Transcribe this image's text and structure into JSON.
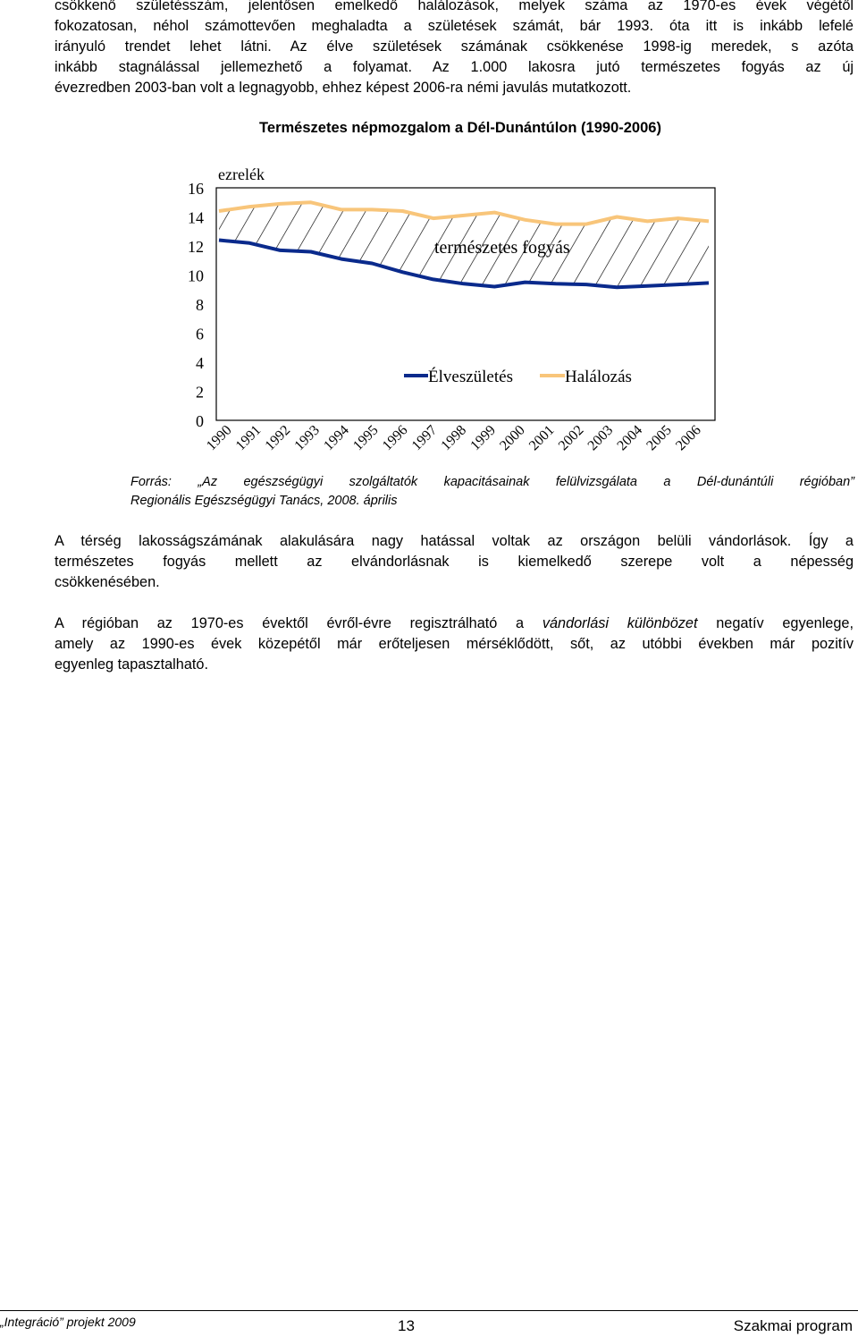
{
  "intro_paragraph": {
    "lines": [
      "csökkenő születésszám, jelentősen emelkedő halálozások, melyek száma az 1970-es évek végétől",
      "fokozatosan, néhol számottevően meghaladta a születések számát, bár 1993. óta itt is inkább lefelé",
      "irányuló trendet lehet látni. Az élve születések számának csökkenése 1998-ig meredek, s azóta",
      "inkább stagnálással jellemezhető a folyamat. Az 1.000 lakosra jutó természetes fogyás az új",
      "évezredben 2003-ban volt a legnagyobb, ehhez képest 2006-ra némi javulás mutatkozott."
    ]
  },
  "chart_title": "Természetes népmozgalom a Dél-Dunántúlon (1990-2006)",
  "chart_data": {
    "type": "line",
    "title": "Természetes népmozgalom a Dél-Dunántúlon (1990-2006)",
    "legend_title": "ezrelék",
    "x": [
      "1990",
      "1991",
      "1992",
      "1993",
      "1994",
      "1995",
      "1996",
      "1997",
      "1998",
      "1999",
      "2000",
      "2001",
      "2002",
      "2003",
      "2004",
      "2005",
      "2006"
    ],
    "ylim": [
      0,
      16
    ],
    "yticks": [
      0,
      2,
      4,
      6,
      8,
      10,
      12,
      14,
      16
    ],
    "series": [
      {
        "name": "Élveszületés",
        "color": "#0a2a8c",
        "values": [
          12.4,
          12.2,
          11.7,
          11.6,
          11.1,
          10.8,
          10.2,
          9.7,
          9.4,
          9.2,
          9.5,
          9.4,
          9.35,
          9.15,
          9.25,
          9.35,
          9.45
        ]
      },
      {
        "name": "Halálozás",
        "color": "#f8c57a",
        "values": [
          14.4,
          14.7,
          14.9,
          15.0,
          14.5,
          14.5,
          14.4,
          13.9,
          14.1,
          14.3,
          13.8,
          13.5,
          13.5,
          14.0,
          13.7,
          13.9,
          13.7
        ]
      }
    ],
    "annotations": [
      "természetes fogyás"
    ],
    "legend_position": "lower-right inside"
  },
  "source_note": {
    "lines": [
      "Forrás: „Az egészségügyi szolgáltatók kapacitásainak felülvizsgálata a Dél-dunántúli régióban”",
      "Regionális Egészségügyi Tanács, 2008. április"
    ]
  },
  "paragraph_2": {
    "lines": [
      "A térség lakosságszámának alakulására nagy hatással voltak az országon belüli vándorlások. Így a",
      "természetes fogyás mellett az elvándorlásnak is kiemelkedő szerepe volt a népesség",
      "csökkenésében."
    ]
  },
  "paragraph_3": {
    "line1_before": "A régióban az 1970-es évektől évről-évre regisztrálható a ",
    "line1_italic": "vándorlási különbözet",
    "line1_after": " negatív egyenlege,",
    "line2": "amely az 1990-es évek közepétől már erőteljesen mérséklődött, sőt, az utóbbi években már pozitív",
    "line3": "egyenleg tapasztalható."
  },
  "footer": {
    "left": "„Integráció” projekt 2009",
    "page_number": "13",
    "right": "Szakmai program"
  }
}
